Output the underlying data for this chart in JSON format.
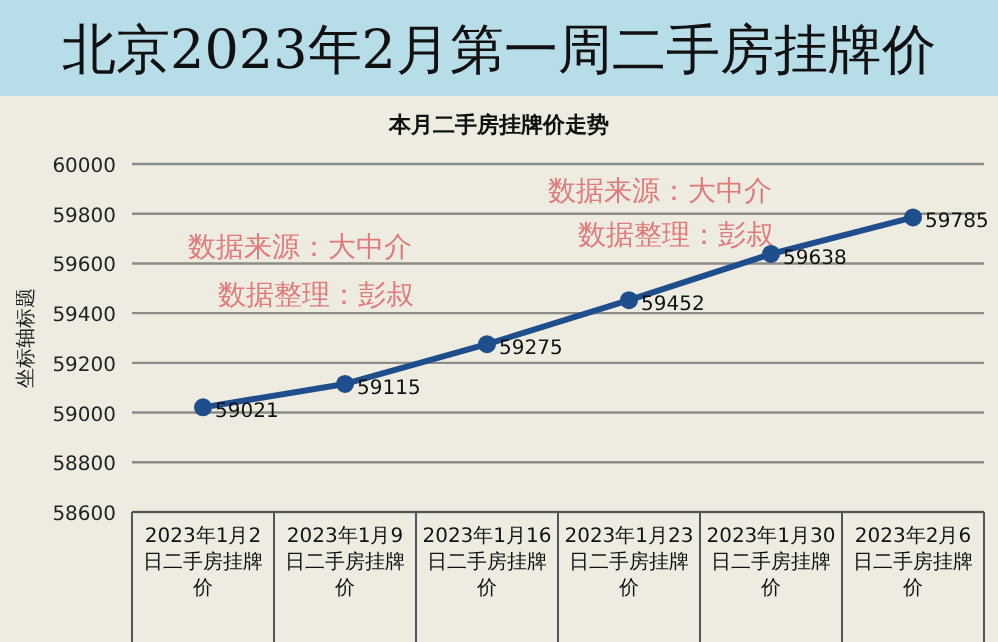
{
  "chart_data": {
    "type": "line",
    "title": "北京2023年2月第一周二手房挂牌价",
    "subtitle": "本月二手房挂牌价走势",
    "ylabel": "坐标轴标题",
    "categories": [
      "2023年1月2日二手房挂牌价",
      "2023年1月9日二手房挂牌价",
      "2023年1月16日二手房挂牌价",
      "2023年1月23日二手房挂牌价",
      "2023年1月30日二手房挂牌价",
      "2023年2月6日二手房挂牌价"
    ],
    "series": [
      {
        "color": "#1f4e8c",
        "values": [
          59021,
          59115,
          59275,
          59452,
          59638,
          59785
        ]
      }
    ],
    "ylim": [
      58600,
      60000
    ],
    "yticks": [
      58600,
      58800,
      59000,
      59200,
      59400,
      59600,
      59800,
      60000
    ],
    "grid": "y",
    "marker": "circle",
    "line_style": "solid",
    "data_labels": true,
    "annotations": [
      "数据来源：大中介",
      "数据整理：彭叔",
      "数据来源：大中介",
      "数据整理：彭叔"
    ]
  }
}
